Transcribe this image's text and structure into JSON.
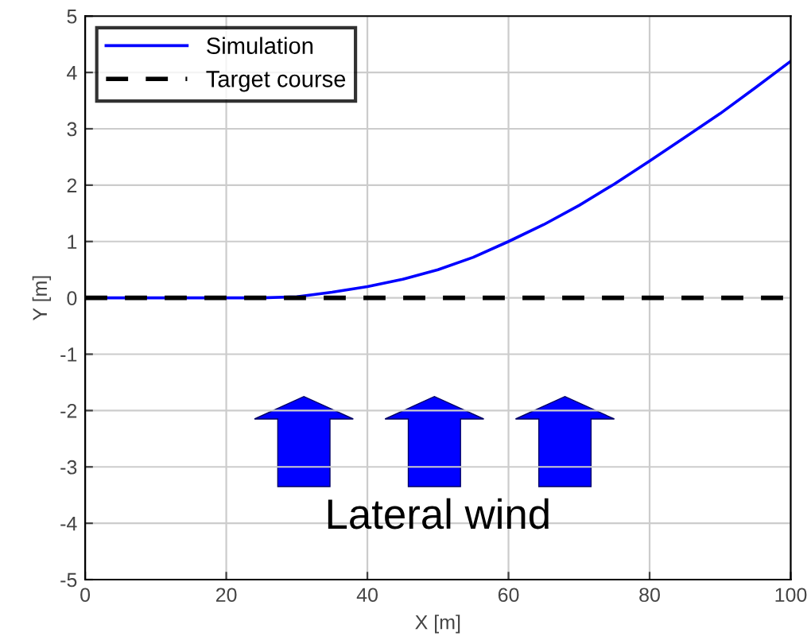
{
  "chart_data": {
    "type": "line",
    "xlabel": "X [m]",
    "ylabel": "Y [m]",
    "xlim": [
      0,
      100
    ],
    "ylim": [
      -5,
      5
    ],
    "xticks": [
      0,
      20,
      40,
      60,
      80,
      100
    ],
    "yticks": [
      -5,
      -4,
      -3,
      -2,
      -1,
      0,
      1,
      2,
      3,
      4,
      5
    ],
    "grid": true,
    "legend": "top left",
    "annotations": [
      "Lateral wind"
    ],
    "series": [
      {
        "name": "Simulation",
        "color": "#0000ff",
        "line_style": "solid",
        "x": [
          0,
          10,
          20,
          25,
          30,
          35,
          40,
          45,
          50,
          55,
          60,
          65,
          70,
          75,
          80,
          85,
          90,
          95,
          100
        ],
        "values": [
          0,
          0,
          0,
          0,
          0.02,
          0.1,
          0.2,
          0.33,
          0.5,
          0.72,
          1.0,
          1.3,
          1.64,
          2.02,
          2.43,
          2.85,
          3.27,
          3.73,
          4.2
        ]
      },
      {
        "name": "Target course",
        "color": "#000000",
        "line_style": "dashed",
        "x": [
          0,
          100
        ],
        "values": [
          0,
          0
        ]
      }
    ]
  }
}
